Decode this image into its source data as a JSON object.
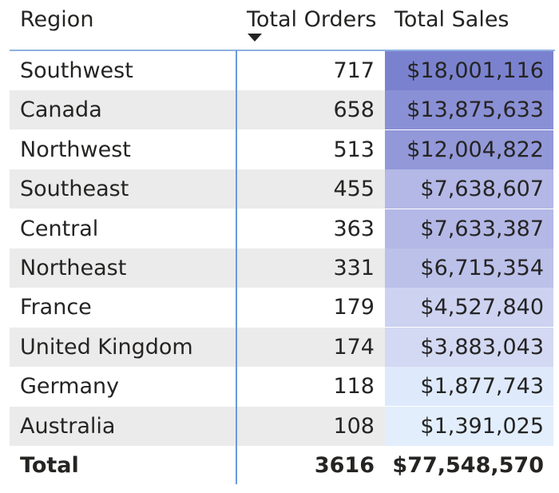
{
  "table": {
    "header": [
      "Region",
      "Total Orders",
      "Total Sales"
    ],
    "rows": [
      [
        "Southwest",
        "717",
        "$18,001,116"
      ],
      [
        "Canada",
        "658",
        "$13,875,633"
      ],
      [
        "Northwest",
        "513",
        "$12,004,822"
      ],
      [
        "Southeast",
        "455",
        "$7,638,607"
      ],
      [
        "Central",
        "363",
        "$7,633,387"
      ],
      [
        "Northeast",
        "331",
        "$6,715,354"
      ],
      [
        "France",
        "179",
        "$4,527,840"
      ],
      [
        "United Kingdom",
        "174",
        "$3,883,043"
      ],
      [
        "Germany",
        "118",
        "$1,877,743"
      ],
      [
        "Australia",
        "108",
        "$1,391,025"
      ]
    ],
    "sales_colors": [
      "#7a82cf",
      "#8a90d5",
      "#9298d8",
      "#b3b8e6",
      "#b3b8e6",
      "#bcc1ea",
      "#ccd2f0",
      "#d3d9f3",
      "#deeafb",
      "#e2eefc"
    ],
    "total": [
      "Total",
      "3616",
      "$77,548,570"
    ]
  }
}
